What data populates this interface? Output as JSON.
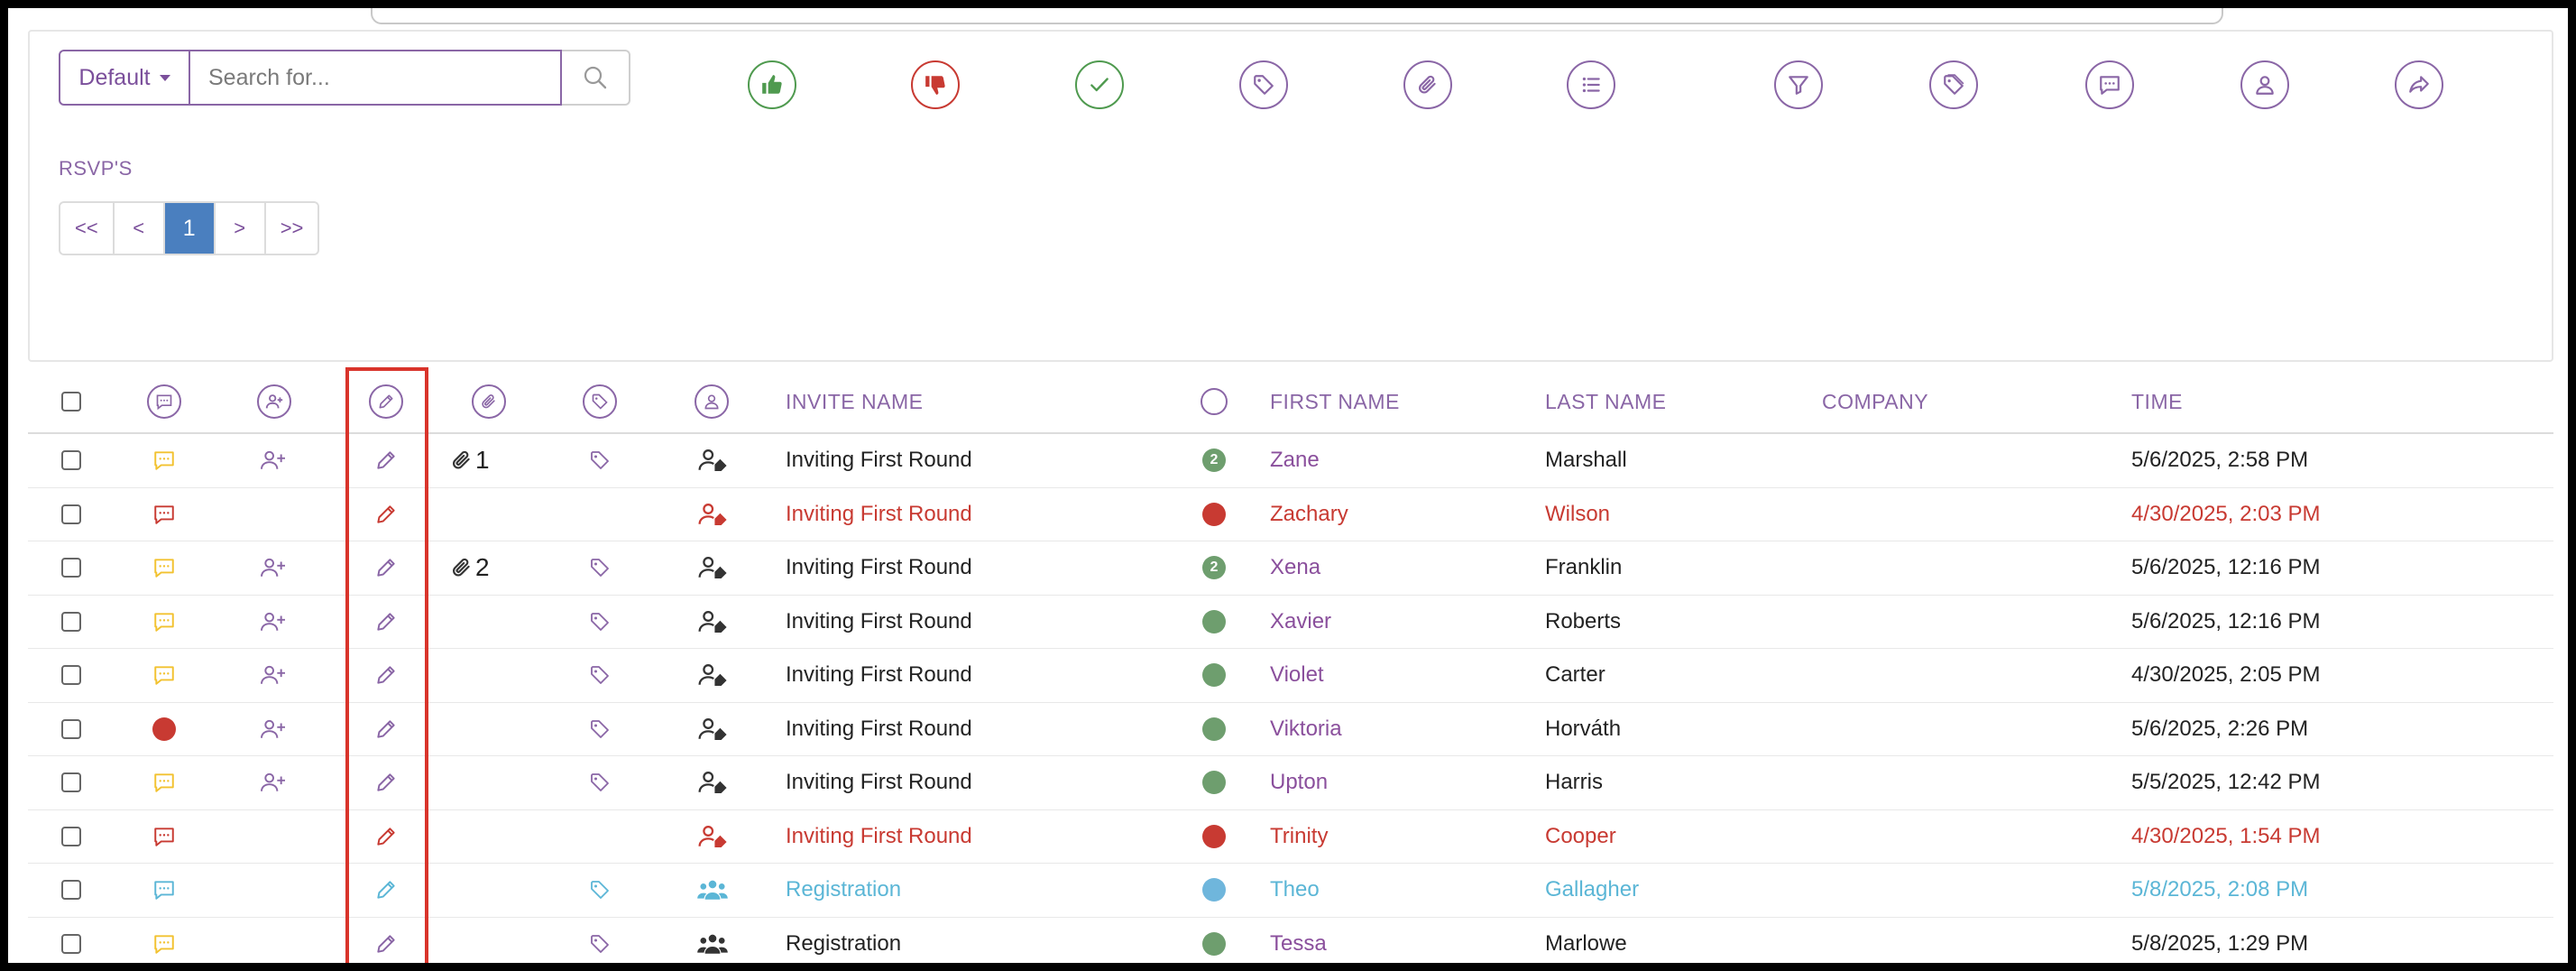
{
  "toolbar": {
    "default_label": "Default",
    "search_placeholder": "Search for...",
    "icons": [
      "thumbs-up-icon",
      "thumbs-down-icon",
      "check-icon",
      "tag-icon",
      "paperclip-icon",
      "list-icon",
      "filter-icon",
      "tags-icon",
      "comment-icon",
      "user-icon",
      "share-icon"
    ]
  },
  "section_label": "RSVP'S",
  "pagination": {
    "first": "<<",
    "prev": "<",
    "current": "1",
    "next": ">",
    "last": ">>"
  },
  "table": {
    "headers": {
      "invite_name": "INVITE NAME",
      "first_name": "FIRST NAME",
      "last_name": "LAST NAME",
      "company": "COMPANY",
      "time": "TIME"
    },
    "rows": [
      {
        "comment_color": "#f2c230",
        "add_user": true,
        "edit_color": "#8a66a6",
        "attach": "1",
        "tag": true,
        "person_icon": "user-tag",
        "person_color": "#333",
        "invite": "Inviting First Round",
        "status": "green",
        "status_num": "2",
        "first": "Zane",
        "last": "Marshall",
        "company": "",
        "time": "5/6/2025, 2:58 PM",
        "tone": "normal"
      },
      {
        "comment_color": "#c83a32",
        "add_user": false,
        "edit_color": "#c83a32",
        "attach": "",
        "tag": false,
        "person_icon": "user-tag",
        "person_color": "#c83a32",
        "invite": "Inviting First Round",
        "status": "red",
        "status_num": "",
        "first": "Zachary",
        "last": "Wilson",
        "company": "",
        "time": "4/30/2025, 2:03 PM",
        "tone": "red"
      },
      {
        "comment_color": "#f2c230",
        "add_user": true,
        "edit_color": "#8a66a6",
        "attach": "2",
        "tag": true,
        "person_icon": "user-tag",
        "person_color": "#333",
        "invite": "Inviting First Round",
        "status": "green",
        "status_num": "2",
        "first": "Xena",
        "last": "Franklin",
        "company": "",
        "time": "5/6/2025, 12:16 PM",
        "tone": "normal"
      },
      {
        "comment_color": "#f2c230",
        "add_user": true,
        "edit_color": "#8a66a6",
        "attach": "",
        "tag": true,
        "person_icon": "user-tag",
        "person_color": "#333",
        "invite": "Inviting First Round",
        "status": "green",
        "status_num": "",
        "first": "Xavier",
        "last": "Roberts",
        "company": "",
        "time": "5/6/2025, 12:16 PM",
        "tone": "normal"
      },
      {
        "comment_color": "#f2c230",
        "add_user": true,
        "edit_color": "#8a66a6",
        "attach": "",
        "tag": true,
        "person_icon": "user-tag",
        "person_color": "#333",
        "invite": "Inviting First Round",
        "status": "green",
        "status_num": "",
        "first": "Violet",
        "last": "Carter",
        "company": "",
        "time": "4/30/2025, 2:05 PM",
        "tone": "normal"
      },
      {
        "comment_color": "#c83a32",
        "comment_dot": true,
        "add_user": true,
        "edit_color": "#8a66a6",
        "attach": "",
        "tag": true,
        "person_icon": "user-tag",
        "person_color": "#333",
        "invite": "Inviting First Round",
        "status": "green",
        "status_num": "",
        "first": "Viktoria",
        "last": "Horváth",
        "company": "",
        "time": "5/6/2025, 2:26 PM",
        "tone": "normal"
      },
      {
        "comment_color": "#f2c230",
        "add_user": true,
        "edit_color": "#8a66a6",
        "attach": "",
        "tag": true,
        "person_icon": "user-tag",
        "person_color": "#333",
        "invite": "Inviting First Round",
        "status": "green",
        "status_num": "",
        "first": "Upton",
        "last": "Harris",
        "company": "",
        "time": "5/5/2025, 12:42 PM",
        "tone": "normal"
      },
      {
        "comment_color": "#c83a32",
        "add_user": false,
        "edit_color": "#c83a32",
        "attach": "",
        "tag": false,
        "person_icon": "user-tag",
        "person_color": "#c83a32",
        "invite": "Inviting First Round",
        "status": "red",
        "status_num": "",
        "first": "Trinity",
        "last": "Cooper",
        "company": "",
        "time": "4/30/2025, 1:54 PM",
        "tone": "red"
      },
      {
        "comment_color": "#5bb6d6",
        "add_user": false,
        "edit_color": "#5bb6d6",
        "attach": "",
        "tag": true,
        "tag_color": "#5bb6d6",
        "person_icon": "users",
        "person_color": "#5bb6d6",
        "invite": "Registration",
        "status": "blue",
        "status_num": "",
        "first": "Theo",
        "last": "Gallagher",
        "company": "",
        "time": "5/8/2025, 2:08 PM",
        "tone": "blue"
      },
      {
        "comment_color": "#f2c230",
        "add_user": false,
        "edit_color": "#8a66a6",
        "attach": "",
        "tag": true,
        "person_icon": "users",
        "person_color": "#333",
        "invite": "Registration",
        "status": "green",
        "status_num": "",
        "first": "Tessa",
        "last": "Marlowe",
        "company": "",
        "time": "5/8/2025, 1:29 PM",
        "tone": "normal"
      }
    ]
  }
}
